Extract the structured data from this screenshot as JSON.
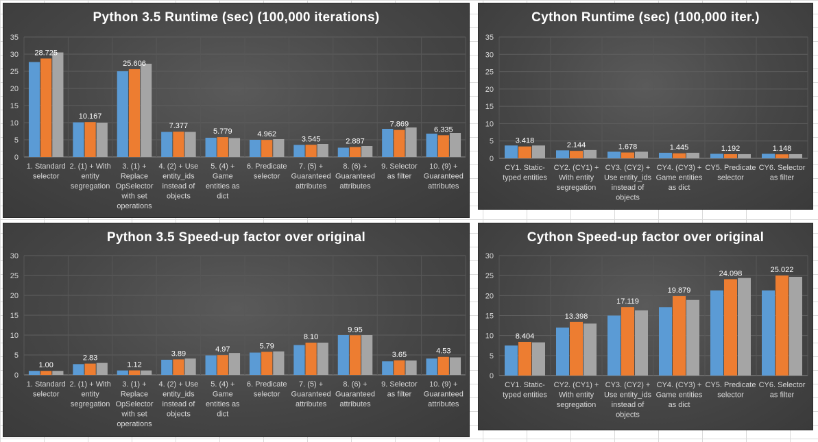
{
  "chart_data": [
    {
      "type": "bar",
      "title": "Python 3.5 Runtime (sec) (100,000 iterations)",
      "categories": [
        [
          "1. Standard",
          "selector"
        ],
        [
          "2. (1) + With",
          "entity",
          "segregation"
        ],
        [
          "3. (1) +",
          "Replace",
          "OpSelector",
          "with set",
          "operations"
        ],
        [
          "4. (2) + Use",
          "entity_ids",
          "instead of",
          "objects"
        ],
        [
          "5. (4) +",
          "Game",
          "entities as",
          "dict"
        ],
        [
          "6. Predicate",
          "selector"
        ],
        [
          "7. (5) +",
          "Guaranteed",
          "attributes"
        ],
        [
          "8. (6) +",
          "Guaranteed",
          "attributes"
        ],
        [
          "9. Selector",
          "as filter"
        ],
        [
          "10. (9) +",
          "Guaranteed",
          "attributes"
        ]
      ],
      "series": [
        {
          "values": [
            27.7,
            10.1,
            25.0,
            7.3,
            5.6,
            5.0,
            3.5,
            2.7,
            8.2,
            6.8
          ],
          "color": "#5b9bd5"
        },
        {
          "values": [
            28.725,
            10.167,
            25.606,
            7.377,
            5.779,
            4.962,
            3.545,
            2.887,
            7.869,
            6.335
          ],
          "color": "#ed7d31"
        },
        {
          "values": [
            30.5,
            10.0,
            27.2,
            7.3,
            5.5,
            5.2,
            3.8,
            3.2,
            8.6,
            7.0
          ],
          "color": "#a5a5a5"
        }
      ],
      "data_labels": [
        "28.725",
        "10.167",
        "25.606",
        "7.377",
        "5.779",
        "4.962",
        "3.545",
        "2.887",
        "7.869",
        "6.335"
      ],
      "ylim": [
        0,
        35
      ],
      "yticks": [
        "0",
        "5",
        "10",
        "15",
        "20",
        "25",
        "30",
        "35"
      ],
      "grid": true
    },
    {
      "type": "bar",
      "title": "Cython Runtime (sec) (100,000 iter.)",
      "categories": [
        [
          "CY1. Static-",
          "typed entities"
        ],
        [
          "CY2. (CY1) +",
          "With entity",
          "segregation"
        ],
        [
          "CY3. (CY2) +",
          "Use entity_ids",
          "instead of",
          "objects"
        ],
        [
          "CY4. (CY3) +",
          "Game entities",
          "as dict"
        ],
        [
          "CY5. Predicate",
          "selector"
        ],
        [
          "CY6. Selector",
          "as filter"
        ]
      ],
      "series": [
        {
          "values": [
            3.7,
            2.3,
            1.9,
            1.6,
            1.3,
            1.3
          ],
          "color": "#5b9bd5"
        },
        {
          "values": [
            3.418,
            2.144,
            1.678,
            1.445,
            1.192,
            1.148
          ],
          "color": "#ed7d31"
        },
        {
          "values": [
            3.7,
            2.4,
            1.9,
            1.6,
            1.2,
            1.2
          ],
          "color": "#a5a5a5"
        }
      ],
      "data_labels": [
        "3.418",
        "2.144",
        "1.678",
        "1.445",
        "1.192",
        "1.148"
      ],
      "ylim": [
        0,
        35
      ],
      "yticks": [
        "0",
        "5",
        "10",
        "15",
        "20",
        "25",
        "30",
        "35"
      ],
      "grid": true
    },
    {
      "type": "bar",
      "title": "Python 3.5 Speed-up factor over original",
      "categories": [
        [
          "1. Standard",
          "selector"
        ],
        [
          "2. (1) + With",
          "entity",
          "segregation"
        ],
        [
          "3. (1) +",
          "Replace",
          "OpSelector",
          "with set",
          "operations"
        ],
        [
          "4. (2) + Use",
          "entity_ids",
          "instead of",
          "objects"
        ],
        [
          "5. (4) +",
          "Game",
          "entities as",
          "dict"
        ],
        [
          "6. Predicate",
          "selector"
        ],
        [
          "7. (5) +",
          "Guaranteed",
          "attributes"
        ],
        [
          "8. (6) +",
          "Guaranteed",
          "attributes"
        ],
        [
          "9. Selector",
          "as filter"
        ],
        [
          "10. (9) +",
          "Guaranteed",
          "attributes"
        ]
      ],
      "series": [
        {
          "values": [
            1.0,
            2.7,
            1.1,
            3.8,
            4.9,
            5.6,
            7.5,
            10.0,
            3.4,
            4.1
          ],
          "color": "#5b9bd5"
        },
        {
          "values": [
            1.0,
            2.83,
            1.12,
            3.89,
            4.97,
            5.79,
            8.1,
            9.95,
            3.65,
            4.53
          ],
          "color": "#ed7d31"
        },
        {
          "values": [
            1.0,
            3.0,
            1.1,
            4.1,
            5.5,
            5.9,
            8.1,
            10.0,
            3.6,
            4.4
          ],
          "color": "#a5a5a5"
        }
      ],
      "data_labels": [
        "1.00",
        "2.83",
        "1.12",
        "3.89",
        "4.97",
        "5.79",
        "8.10",
        "9.95",
        "3.65",
        "4.53"
      ],
      "ylim": [
        0,
        30
      ],
      "yticks": [
        "0",
        "5",
        "10",
        "15",
        "20",
        "25",
        "30"
      ],
      "grid": true
    },
    {
      "type": "bar",
      "title": "Cython Speed-up factor over original",
      "categories": [
        [
          "CY1. Static-",
          "typed entities"
        ],
        [
          "CY2. (CY1) +",
          "With entity",
          "segregation"
        ],
        [
          "CY3. (CY2) +",
          "Use entity_ids",
          "instead of",
          "objects"
        ],
        [
          "CY4. (CY3) +",
          "Game entities",
          "as dict"
        ],
        [
          "CY5. Predicate",
          "selector"
        ],
        [
          "CY6. Selector",
          "as filter"
        ]
      ],
      "series": [
        {
          "values": [
            7.5,
            12.0,
            15.0,
            17.1,
            21.3,
            21.3
          ],
          "color": "#5b9bd5"
        },
        {
          "values": [
            8.404,
            13.398,
            17.119,
            19.879,
            24.098,
            25.022
          ],
          "color": "#ed7d31"
        },
        {
          "values": [
            8.3,
            13.0,
            16.3,
            18.9,
            24.4,
            24.7
          ],
          "color": "#a5a5a5"
        }
      ],
      "data_labels": [
        "8.404",
        "13.398",
        "17.119",
        "19.879",
        "24.098",
        "25.022"
      ],
      "ylim": [
        0,
        30
      ],
      "yticks": [
        "0",
        "5",
        "10",
        "15",
        "20",
        "25",
        "30"
      ],
      "grid": true
    }
  ]
}
